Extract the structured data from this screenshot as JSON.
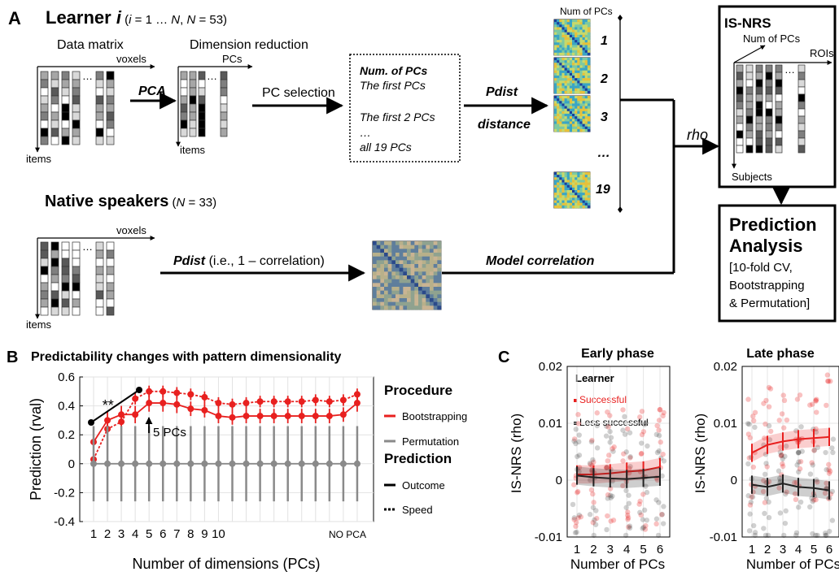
{
  "panelA": {
    "letter": "A",
    "learner": {
      "title": "Learner ",
      "italic_i": "i",
      "range_open": " (",
      "range_i": "i",
      "range_mid": " = 1 … ",
      "range_N1": "N",
      "range_comma": ", ",
      "range_N2": "N",
      "range_end": " = 53)"
    },
    "data_matrix_label": "Data matrix",
    "dim_red_label": "Dimension reduction",
    "voxels_label": "voxels",
    "pcs_label": "PCs",
    "items_label": "items",
    "pca_label": "PCA",
    "pc_selection_label": "PC selection",
    "box_lines": [
      "Num. of PCs",
      "The first PCs",
      "The first 2 PCs",
      "…",
      "all 19 PCs"
    ],
    "pdist_label": "Pdist",
    "distance_label": "distance",
    "num_pcs_col": "Num of PCs",
    "rdm_labels": [
      "1",
      "2",
      "3",
      "…",
      "19"
    ],
    "rho_label": "rho",
    "isnrs": {
      "title": "IS-NRS",
      "num_pcs": "Num of PCs",
      "rois": "ROIs",
      "subjects": "Subjects"
    },
    "native": {
      "title": "Native speakers",
      "open": " (",
      "N": "N",
      "end": " = 33)"
    },
    "pdist_native_bold": "Pdist",
    "pdist_native_rest": " (i.e., 1 – correlation)",
    "model_corr_label": "Model correlation",
    "prediction_box": {
      "title1": "Prediction",
      "title2": "Analysis",
      "lines": [
        "[10-fold CV,",
        "Bootstrapping",
        "& Permutation]"
      ]
    }
  },
  "panelB": {
    "letter": "B",
    "chart_data": {
      "type": "line",
      "title": "Predictability changes with pattern dimensionality",
      "xlabel": "Number of dimensions (PCs)",
      "ylabel": "Prediction (rval)",
      "ylim": [
        -0.4,
        0.6
      ],
      "yticks": [
        -0.4,
        -0.2,
        0,
        0.2,
        0.4,
        0.6
      ],
      "ytick_labels": [
        "-0.4",
        "-0.2",
        "0",
        "0.2",
        "0.4",
        "0.6"
      ],
      "xtick_labels": [
        "1",
        "2",
        "3",
        "4",
        "5",
        "6",
        "7",
        "8",
        "9",
        "10",
        "NO PCA"
      ],
      "x": [
        1,
        2,
        3,
        4,
        5,
        6,
        7,
        8,
        9,
        10,
        11,
        12,
        13,
        14,
        15,
        16,
        17,
        18,
        19,
        20
      ],
      "series": [
        {
          "name": "Bootstrapping",
          "style": "Outcome",
          "color": "#e8201f",
          "values": [
            0.15,
            0.3,
            0.34,
            0.34,
            0.42,
            0.42,
            0.41,
            0.38,
            0.37,
            0.33,
            0.32,
            0.33,
            0.33,
            0.33,
            0.33,
            0.33,
            0.33,
            0.33,
            0.34,
            0.42
          ],
          "err": [
            0.06,
            0.06,
            0.06,
            0.06,
            0.06,
            0.06,
            0.06,
            0.05,
            0.05,
            0.05,
            0.05,
            0.05,
            0.05,
            0.05,
            0.05,
            0.05,
            0.05,
            0.05,
            0.05,
            0.06
          ]
        },
        {
          "name": "Bootstrapping",
          "style": "Speed",
          "color": "#e8201f",
          "values": [
            0.03,
            0.24,
            0.29,
            0.45,
            0.5,
            0.5,
            0.49,
            0.48,
            0.46,
            0.42,
            0.41,
            0.42,
            0.43,
            0.43,
            0.43,
            0.43,
            0.44,
            0.43,
            0.44,
            0.48
          ],
          "err": [
            0.04,
            0.04,
            0.04,
            0.04,
            0.04,
            0.04,
            0.04,
            0.04,
            0.04,
            0.04,
            0.04,
            0.04,
            0.04,
            0.04,
            0.04,
            0.04,
            0.04,
            0.04,
            0.04,
            0.04
          ]
        },
        {
          "name": "Permutation",
          "color": "#8a8a8a",
          "values": [
            0,
            0,
            0,
            0,
            0,
            0,
            0,
            0,
            0,
            0,
            0,
            0,
            0,
            0,
            0,
            0,
            0,
            0,
            0,
            0
          ],
          "err": [
            0.26,
            0.26,
            0.26,
            0.26,
            0.26,
            0.26,
            0.26,
            0.26,
            0.26,
            0.26,
            0.26,
            0.26,
            0.26,
            0.26,
            0.26,
            0.26,
            0.26,
            0.26,
            0.26,
            0.26
          ]
        }
      ],
      "annotations": {
        "stars": "**",
        "arrow_label": "5 PCs"
      },
      "legend": {
        "procedure_title": "Procedure",
        "procedure_items": [
          "Bootstrapping",
          "Permutation"
        ],
        "prediction_title": "Prediction",
        "prediction_items": [
          "Outcome",
          "Speed"
        ]
      }
    }
  },
  "panelC": {
    "letter": "C",
    "chart_data": [
      {
        "type": "scatter",
        "title": "Early phase",
        "xlabel": "Number of PCs",
        "ylabel": "IS-NRS (rho)",
        "ylim": [
          -0.01,
          0.02
        ],
        "yticks": [
          -0.01,
          0,
          0.01,
          0.02
        ],
        "ytick_labels": [
          "-0.01",
          "0",
          "0.01",
          "0.02"
        ],
        "categories": [
          "1",
          "2",
          "3",
          "4",
          "5",
          "6"
        ],
        "legend_title": "Learner",
        "series": [
          {
            "name": "Successful",
            "color": "#e8201f",
            "values": [
              0.001,
              0.001,
              0.0012,
              0.0015,
              0.0017,
              0.0023
            ]
          },
          {
            "name": "Less successful",
            "color": "#222222",
            "values": [
              0.0008,
              0.0005,
              0.0003,
              0.0002,
              0.0004,
              0.0006
            ]
          }
        ]
      },
      {
        "type": "scatter",
        "title": "Late phase",
        "xlabel": "Number of PCs",
        "ylabel": "IS-NRS (rho)",
        "ylim": [
          -0.01,
          0.02
        ],
        "yticks": [
          -0.01,
          0,
          0.01,
          0.02
        ],
        "ytick_labels": [
          "-0.01",
          "0",
          "0.01",
          "0.02"
        ],
        "categories": [
          "1",
          "2",
          "3",
          "4",
          "5",
          "6"
        ],
        "series": [
          {
            "name": "Successful",
            "color": "#e8201f",
            "values": [
              0.0048,
              0.0062,
              0.0068,
              0.0072,
              0.0074,
              0.0076
            ]
          },
          {
            "name": "Less successful",
            "color": "#222222",
            "values": [
              -0.0008,
              -0.0012,
              -0.0006,
              -0.0012,
              -0.0014,
              -0.0018
            ]
          }
        ]
      }
    ]
  }
}
